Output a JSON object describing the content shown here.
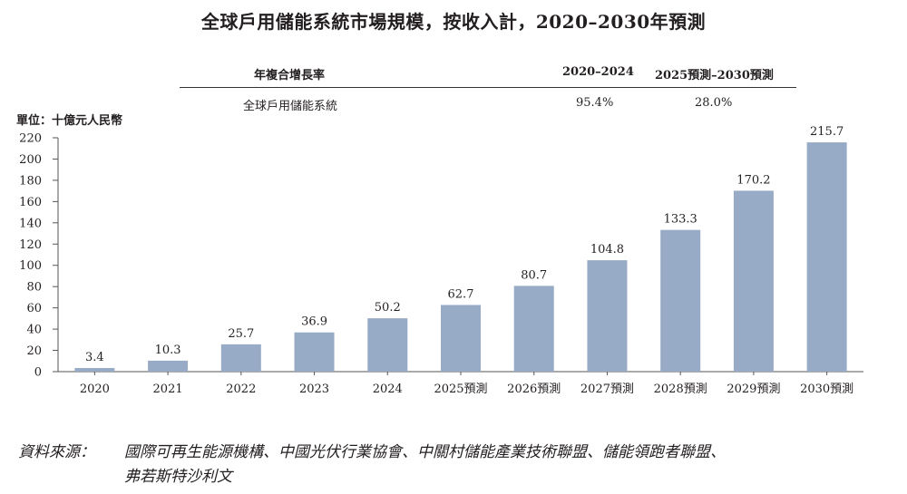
{
  "title": "全球戶用儲能系統市場規模，按收入計，2020–2030年預測",
  "cagr_table": {
    "header_label": "年複合增長率",
    "col1_header": "2020–2024",
    "col2_header": "2025預測–2030預測",
    "row_label": "全球戶用儲能系統",
    "col1_value": "95.4%",
    "col2_value": "28.0%"
  },
  "unit_label": "單位：十億元人民幣",
  "chart_data": {
    "type": "bar",
    "title": "全球戶用儲能系統市場規模，按收入計，2020–2030年預測",
    "xlabel": "",
    "ylabel": "單位：十億元人民幣",
    "ylim": [
      0,
      220
    ],
    "yticks": [
      0,
      20,
      40,
      60,
      80,
      100,
      120,
      140,
      160,
      180,
      200,
      220
    ],
    "categories": [
      "2020",
      "2021",
      "2022",
      "2023",
      "2024",
      "2025預測",
      "2026預測",
      "2027預測",
      "2028預測",
      "2029預測",
      "2030預測"
    ],
    "values": [
      3.4,
      10.3,
      25.7,
      36.9,
      50.2,
      62.7,
      80.7,
      104.8,
      133.3,
      170.2,
      215.7
    ],
    "value_labels": [
      "3.4",
      "10.3",
      "25.7",
      "36.9",
      "50.2",
      "62.7",
      "80.7",
      "104.8",
      "133.3",
      "170.2",
      "215.7"
    ],
    "bar_color": "#98abc6",
    "grid": false
  },
  "source": {
    "label": "資料來源：",
    "line1": "國際可再生能源機構、中國光伏行業協會、中關村儲能產業技術聯盟、儲能領跑者聯盟、",
    "line2": "弗若斯特沙利文"
  }
}
